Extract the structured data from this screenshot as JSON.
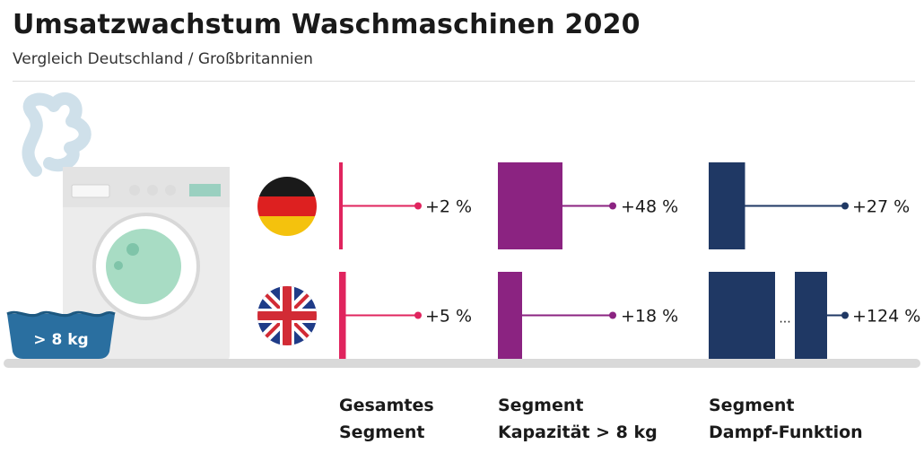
{
  "title": "Umsatzwachstum Waschmaschinen 2020",
  "subtitle": "Vergleich Deutschland / Großbritannien",
  "machine_badge": "> 8 kg",
  "countries": [
    {
      "name": "Deutschland",
      "flag": "germany-flag-icon"
    },
    {
      "name": "Großbritannien",
      "flag": "uk-flag-icon"
    }
  ],
  "chart_data": {
    "type": "bar",
    "categories": [
      {
        "line1": "Gesamtes",
        "line2": "Segment",
        "color": "#e0245e"
      },
      {
        "line1": "Segment",
        "line2": "Kapazität > 8 kg",
        "color": "#8b2381"
      },
      {
        "line1": "Segment",
        "line2": "Dampf-Funktion",
        "color": "#1f3864"
      }
    ],
    "series": [
      {
        "name": "Deutschland",
        "values": [
          2,
          48,
          27
        ],
        "labels": [
          "+2 %",
          "+48 %",
          "+27 %"
        ]
      },
      {
        "name": "Großbritannien",
        "values": [
          5,
          18,
          124
        ],
        "labels": [
          "+5 %",
          "+18 %",
          "+124 %"
        ]
      }
    ],
    "broken_bar": {
      "series": 1,
      "category": 2,
      "break_symbol": "..."
    },
    "unit": "%"
  },
  "colors": {
    "floor": "#d9d9d9",
    "machine": "#eeeeee",
    "steam": "#cfe0ea",
    "basin": "#2a6fa0",
    "drum": "#a8dcc4"
  }
}
